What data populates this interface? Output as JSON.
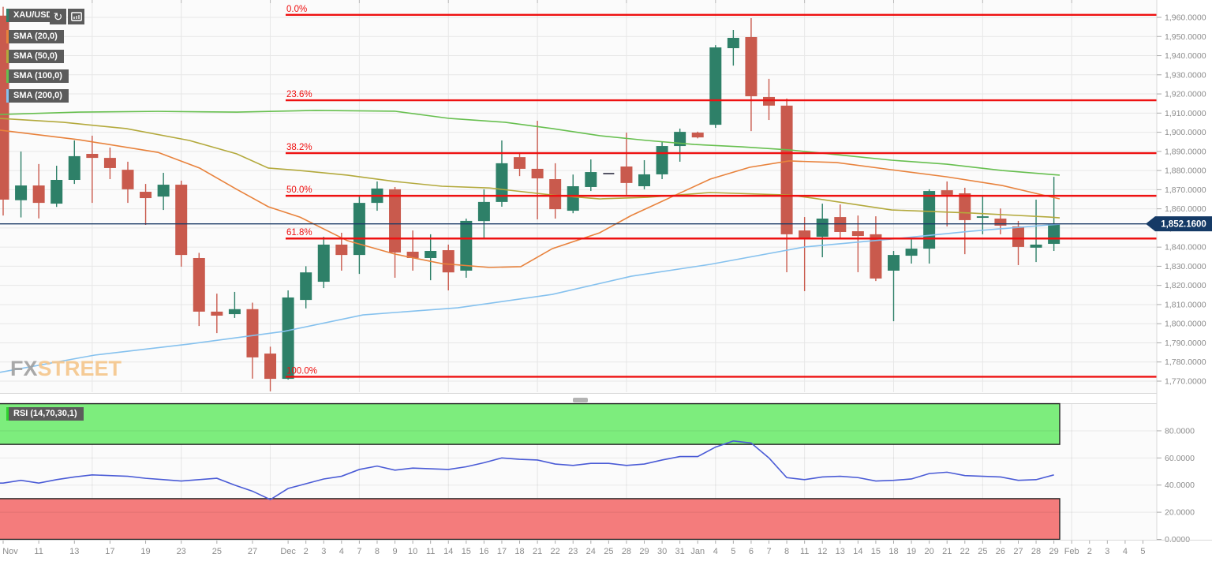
{
  "toolbar": {
    "symbol": "XAU/USD",
    "refresh_glyph": "↻",
    "icons": [
      {
        "name": "refresh-icon",
        "meaning": "reload chart"
      },
      {
        "name": "measure-chart-icon",
        "meaning": "chart tool"
      }
    ]
  },
  "overlays": [
    {
      "label": "SMA (20,0)"
    },
    {
      "label": "SMA (50,0)"
    },
    {
      "label": "SMA (100,0)"
    },
    {
      "label": "SMA (200,0)"
    }
  ],
  "rsi_label": "RSI (14,70,30,1)",
  "watermark": {
    "fx": "FX",
    "street": "STREET"
  },
  "chart_data": {
    "type": "candlestick",
    "symbol": "XAU/USD",
    "current_price": 1852.16,
    "price_badge": "1,852.1600",
    "price_axis": {
      "min": 1770,
      "max": 1960,
      "step": 10,
      "ticks": [
        {
          "value": 1960,
          "label": "1,960.0000"
        },
        {
          "value": 1950,
          "label": "1,950.0000"
        },
        {
          "value": 1940,
          "label": "1,940.0000"
        },
        {
          "value": 1930,
          "label": "1,930.0000"
        },
        {
          "value": 1920,
          "label": "1,920.0000"
        },
        {
          "value": 1910,
          "label": "1,910.0000"
        },
        {
          "value": 1900,
          "label": "1,900.0000"
        },
        {
          "value": 1890,
          "label": "1,890.0000"
        },
        {
          "value": 1880,
          "label": "1,880.0000"
        },
        {
          "value": 1870,
          "label": "1,870.0000"
        },
        {
          "value": 1860,
          "label": "1,860.0000"
        },
        {
          "value": 1850,
          "label": "1,850.0000"
        },
        {
          "value": 1840,
          "label": "1,840.0000"
        },
        {
          "value": 1830,
          "label": "1,830.0000"
        },
        {
          "value": 1820,
          "label": "1,820.0000"
        },
        {
          "value": 1810,
          "label": "1,810.0000"
        },
        {
          "value": 1800,
          "label": "1,800.0000"
        },
        {
          "value": 1790,
          "label": "1,790.0000"
        },
        {
          "value": 1780,
          "label": "1,780.0000"
        },
        {
          "value": 1770,
          "label": "1,770.0000"
        }
      ]
    },
    "rsi_axis": [
      {
        "value": 80,
        "label": "80.0000"
      },
      {
        "value": 60,
        "label": "60.0000"
      },
      {
        "value": 40,
        "label": "40.0000"
      },
      {
        "value": 20,
        "label": "20.0000"
      },
      {
        "value": 0,
        "label": "0.0000"
      }
    ],
    "fib_levels": [
      {
        "label": "0.0%",
        "price": 1961.3
      },
      {
        "label": "23.6%",
        "price": 1916.7
      },
      {
        "label": "38.2%",
        "price": 1889.1
      },
      {
        "label": "50.0%",
        "price": 1866.8
      },
      {
        "label": "61.8%",
        "price": 1844.5
      },
      {
        "label": "100.0%",
        "price": 1772.3
      }
    ],
    "x_labels": [
      "Nov",
      null,
      "11",
      null,
      "13",
      null,
      "17",
      null,
      "19",
      null,
      "23",
      null,
      "25",
      null,
      "27",
      null,
      "Dec",
      "2",
      "3",
      "4",
      "7",
      "8",
      "9",
      "10",
      "11",
      "14",
      "15",
      "16",
      "17",
      "18",
      "21",
      "22",
      "23",
      "24",
      "25",
      "28",
      "29",
      "30",
      "31",
      "Jan",
      "4",
      "5",
      "6",
      "7",
      "8",
      "11",
      "12",
      "13",
      "14",
      "15",
      "18",
      "19",
      "20",
      "21",
      "22",
      "25",
      "26",
      "27",
      "28",
      "29",
      "Feb",
      "2",
      "3",
      "4",
      "5"
    ],
    "vgrid_slots": [
      5,
      10,
      15,
      20,
      25,
      30,
      35,
      40,
      45,
      50,
      55,
      60
    ],
    "candles": [
      [
        1960.9,
        1965.5,
        1856.5,
        1864.8
      ],
      [
        1864.5,
        1889.9,
        1855.5,
        1872.2
      ],
      [
        1872.2,
        1883.4,
        1855.0,
        1863.1
      ],
      [
        1862.7,
        1882.5,
        1861.0,
        1875.1
      ],
      [
        1875.1,
        1895.7,
        1873.0,
        1887.5
      ],
      [
        1888.7,
        1898.2,
        1863.1,
        1886.6
      ],
      [
        1886.6,
        1892.0,
        1875.5,
        1881.3
      ],
      [
        1880.4,
        1884.6,
        1863.1,
        1870.2
      ],
      [
        1868.9,
        1873.0,
        1851.6,
        1865.6
      ],
      [
        1866.4,
        1878.8,
        1859.4,
        1872.6
      ],
      [
        1872.6,
        1874.7,
        1829.8,
        1835.9
      ],
      [
        1834.3,
        1837.0,
        1798.8,
        1806.3
      ],
      [
        1806.3,
        1815.7,
        1795.1,
        1804.2
      ],
      [
        1805.0,
        1816.6,
        1803.0,
        1807.6
      ],
      [
        1807.6,
        1811.0,
        1771.3,
        1782.4
      ],
      [
        1784.4,
        1788.0,
        1764.7,
        1771.2
      ],
      [
        1771.2,
        1817.4,
        1770.8,
        1813.7
      ],
      [
        1812.4,
        1830.0,
        1808.0,
        1826.8
      ],
      [
        1821.9,
        1845.4,
        1818.6,
        1841.3
      ],
      [
        1841.3,
        1847.5,
        1827.7,
        1835.9
      ],
      [
        1835.9,
        1867.2,
        1826.0,
        1863.1
      ],
      [
        1863.1,
        1874.3,
        1859.0,
        1870.6
      ],
      [
        1870.2,
        1871.4,
        1824.0,
        1837.2
      ],
      [
        1837.6,
        1848.7,
        1827.7,
        1834.3
      ],
      [
        1834.3,
        1846.7,
        1822.7,
        1838.0
      ],
      [
        1838.4,
        1841.3,
        1817.4,
        1826.8
      ],
      [
        1827.7,
        1854.9,
        1824.0,
        1853.7
      ],
      [
        1853.6,
        1870.2,
        1844.2,
        1863.6
      ],
      [
        1863.6,
        1895.7,
        1861.1,
        1883.8
      ],
      [
        1887.0,
        1889.5,
        1877.1,
        1880.9
      ],
      [
        1880.9,
        1906.0,
        1854.5,
        1875.9
      ],
      [
        1875.5,
        1883.8,
        1854.9,
        1859.8
      ],
      [
        1859.0,
        1877.9,
        1857.7,
        1871.8
      ],
      [
        1871.4,
        1885.8,
        1869.3,
        1879.2
      ],
      [
        1878.4,
        1878.4,
        1878.4,
        1878.4
      ],
      [
        1882.1,
        1899.8,
        1867.3,
        1873.5
      ],
      [
        1871.8,
        1885.4,
        1870.2,
        1878.0
      ],
      [
        1878.0,
        1894.9,
        1875.5,
        1892.8
      ],
      [
        1892.8,
        1901.9,
        1884.6,
        1900.2
      ],
      [
        1899.8,
        1900.3,
        1896.8,
        1897.3
      ],
      [
        1903.9,
        1945.5,
        1902.3,
        1944.3
      ],
      [
        1943.9,
        1953.4,
        1934.8,
        1949.3
      ],
      [
        1949.7,
        1959.6,
        1900.6,
        1918.8
      ],
      [
        1918.4,
        1927.9,
        1906.4,
        1913.9
      ],
      [
        1913.9,
        1917.6,
        1826.9,
        1846.7
      ],
      [
        1848.7,
        1855.7,
        1817.0,
        1844.6
      ],
      [
        1845.4,
        1862.7,
        1834.7,
        1854.9
      ],
      [
        1855.7,
        1862.3,
        1844.6,
        1847.9
      ],
      [
        1848.3,
        1856.5,
        1826.9,
        1845.8
      ],
      [
        1846.7,
        1856.1,
        1822.3,
        1823.6
      ],
      [
        1827.7,
        1838.0,
        1801.3,
        1835.9
      ],
      [
        1835.5,
        1844.2,
        1831.4,
        1839.2
      ],
      [
        1839.2,
        1870.2,
        1831.4,
        1869.3
      ],
      [
        1869.7,
        1874.3,
        1850.8,
        1867.3
      ],
      [
        1868.1,
        1871.0,
        1836.3,
        1854.1
      ],
      [
        1855.3,
        1866.8,
        1846.7,
        1856.1
      ],
      [
        1854.9,
        1860.2,
        1846.7,
        1851.2
      ],
      [
        1850.8,
        1853.7,
        1830.6,
        1840.1
      ],
      [
        1839.7,
        1864.8,
        1832.2,
        1841.3
      ],
      [
        1841.7,
        1876.7,
        1838.0,
        1852.2
      ]
    ],
    "sma": {
      "sma20": [
        [
          0,
          1901.1
        ],
        [
          100,
          1896.1
        ],
        [
          200,
          1889.5
        ],
        [
          253,
          1881.3
        ],
        [
          300,
          1870.2
        ],
        [
          340,
          1861.1
        ],
        [
          380,
          1855.7
        ],
        [
          440,
          1843.4
        ],
        [
          500,
          1836.4
        ],
        [
          560,
          1831.4
        ],
        [
          620,
          1829.4
        ],
        [
          660,
          1829.8
        ],
        [
          700,
          1839.2
        ],
        [
          760,
          1847.5
        ],
        [
          800,
          1856.5
        ],
        [
          850,
          1866.0
        ],
        [
          900,
          1875.5
        ],
        [
          950,
          1881.7
        ],
        [
          1000,
          1885.0
        ],
        [
          1060,
          1884.2
        ],
        [
          1130,
          1880.4
        ],
        [
          1200,
          1876.7
        ],
        [
          1270,
          1872.2
        ],
        [
          1330,
          1866.4
        ],
        [
          1343,
          1865.2
        ]
      ],
      "sma50": [
        [
          0,
          1907.2
        ],
        [
          80,
          1905.2
        ],
        [
          160,
          1901.9
        ],
        [
          240,
          1895.7
        ],
        [
          300,
          1888.7
        ],
        [
          340,
          1881.3
        ],
        [
          380,
          1880.0
        ],
        [
          440,
          1877.6
        ],
        [
          500,
          1874.3
        ],
        [
          560,
          1871.8
        ],
        [
          620,
          1870.9
        ],
        [
          700,
          1867.2
        ],
        [
          760,
          1865.2
        ],
        [
          820,
          1866.0
        ],
        [
          900,
          1868.5
        ],
        [
          1000,
          1867.2
        ],
        [
          1030,
          1865.6
        ],
        [
          1130,
          1859.4
        ],
        [
          1230,
          1857.8
        ],
        [
          1330,
          1855.7
        ],
        [
          1343,
          1855.3
        ]
      ],
      "sma100": [
        [
          0,
          1909.3
        ],
        [
          100,
          1910.5
        ],
        [
          200,
          1910.9
        ],
        [
          300,
          1910.5
        ],
        [
          400,
          1911.4
        ],
        [
          500,
          1911.0
        ],
        [
          570,
          1907.2
        ],
        [
          640,
          1905.2
        ],
        [
          700,
          1901.9
        ],
        [
          760,
          1898.2
        ],
        [
          820,
          1895.7
        ],
        [
          880,
          1893.6
        ],
        [
          940,
          1892.4
        ],
        [
          1000,
          1890.8
        ],
        [
          1060,
          1888.3
        ],
        [
          1130,
          1885.4
        ],
        [
          1200,
          1883.3
        ],
        [
          1270,
          1880.0
        ],
        [
          1330,
          1878.0
        ],
        [
          1343,
          1877.6
        ]
      ],
      "sma200": [
        [
          0,
          1774.6
        ],
        [
          120,
          1783.6
        ],
        [
          240,
          1789.4
        ],
        [
          360,
          1796.0
        ],
        [
          460,
          1804.6
        ],
        [
          580,
          1808.3
        ],
        [
          700,
          1815.3
        ],
        [
          800,
          1824.8
        ],
        [
          900,
          1831.0
        ],
        [
          1020,
          1840.1
        ],
        [
          1130,
          1844.2
        ],
        [
          1230,
          1848.3
        ],
        [
          1330,
          1851.6
        ],
        [
          1343,
          1852.0
        ]
      ]
    },
    "rsi": {
      "params": "RSI (14,70,30,1)",
      "overbought": 70,
      "oversold": 30,
      "values": [
        41.5,
        43.5,
        41.5,
        44,
        46,
        47.5,
        47,
        46.5,
        45,
        44,
        43,
        44,
        45,
        40,
        35.5,
        29.3,
        37.5,
        41,
        44.5,
        46.5,
        51.5,
        54,
        51,
        52.5,
        52,
        51.5,
        53.5,
        56.5,
        60,
        59,
        58.5,
        55.5,
        54.5,
        56,
        56,
        54.5,
        55.5,
        58.5,
        61,
        61,
        68,
        72.5,
        71,
        60,
        45.5,
        44,
        46,
        46.5,
        45.5,
        43,
        43.5,
        44.5,
        48.5,
        49.5,
        47,
        46.5,
        46,
        43.5,
        44,
        47.5
      ]
    },
    "colors": {
      "up": "#2e8068",
      "down": "#c95a4d",
      "flat": "#555566",
      "fib": "#ee1111",
      "price_line": "#1b3b66",
      "badge_bg": "#153a66",
      "badge_text": "#ffffff",
      "sma20": "#e8823c",
      "sma50": "#b3a93c",
      "sma100": "#67bf4f",
      "sma200": "#85c1ee",
      "rsi_line": "#4a5bd6",
      "band_green": "#7ded7d",
      "band_red": "#f47c7c",
      "band_border": "#222222",
      "grid": "#e7e7e7",
      "axis_text": "#8c8c8c",
      "axis_line": "#d8d8d8",
      "plot_bg": "#fbfbfb",
      "chip_bg": "#5b5b5b",
      "accent_symbol": "#2e8068",
      "accent_rsi": "#2fd32f",
      "scroll_thumb": "#b3b3b3"
    }
  }
}
